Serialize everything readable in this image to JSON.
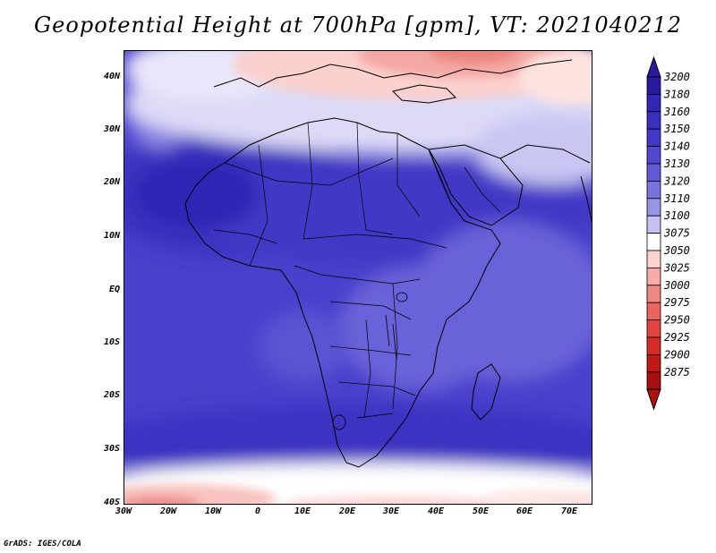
{
  "title": "Geopotential Height at 700hPa [gpm], VT: 2021040212",
  "credit": "GrADS: IGES/COLA",
  "lat_labels": [
    "40N",
    "30N",
    "20N",
    "10N",
    "EQ",
    "10S",
    "20S",
    "30S",
    "40S"
  ],
  "lon_labels": [
    "30W",
    "20W",
    "10W",
    "0",
    "10E",
    "20E",
    "30E",
    "40E",
    "50E",
    "60E",
    "70E"
  ],
  "colorbar": {
    "levels": [
      "3200",
      "3180",
      "3160",
      "3150",
      "3140",
      "3130",
      "3120",
      "3110",
      "3100",
      "3075",
      "3050",
      "3025",
      "3000",
      "2975",
      "2950",
      "2925",
      "2900",
      "2875"
    ],
    "colors": [
      "#2a1aa0",
      "#3226b4",
      "#3a30c0",
      "#4339c8",
      "#5148cf",
      "#6159d6",
      "#7a72de",
      "#9a94e6",
      "#c5c2f2",
      "#ffffff",
      "#fbd2d0",
      "#f6aca8",
      "#f08884",
      "#ea6560",
      "#e2433f",
      "#d62b28",
      "#c01814",
      "#a50f0f"
    ],
    "top_color": "#2a1aa0",
    "bottom_color": "#b01212"
  }
}
